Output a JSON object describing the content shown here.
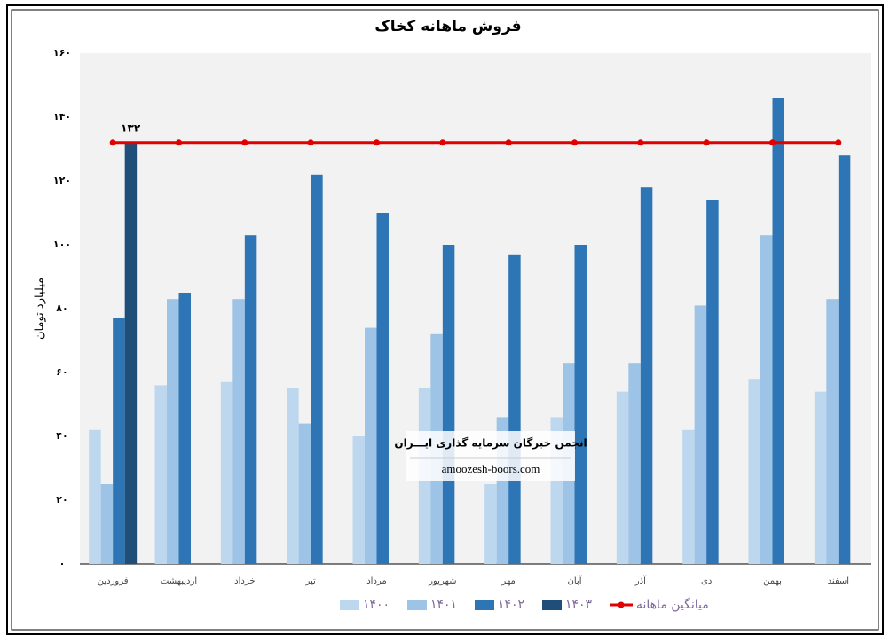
{
  "chart_data": {
    "type": "bar",
    "title": "فروش ماهانه کخاک",
    "y_label": "میلیارد تومان",
    "categories": [
      "فروردین",
      "اردیبهشت",
      "خرداد",
      "تیر",
      "مرداد",
      "شهریور",
      "مهر",
      "آبان",
      "آذر",
      "دی",
      "بهمن",
      "اسفند"
    ],
    "series": [
      {
        "name": "۱۴۰۰",
        "color": "#bdd7ee",
        "values": [
          42,
          56,
          57,
          55,
          40,
          55,
          25,
          46,
          54,
          42,
          58,
          54
        ]
      },
      {
        "name": "۱۴۰۱",
        "color": "#9dc3e6",
        "values": [
          25,
          83,
          83,
          44,
          74,
          72,
          46,
          63,
          63,
          81,
          103,
          83
        ]
      },
      {
        "name": "۱۴۰۲",
        "color": "#2e75b6",
        "values": [
          77,
          85,
          103,
          122,
          110,
          100,
          97,
          100,
          118,
          114,
          146,
          128
        ]
      },
      {
        "name": "۱۴۰۳",
        "color": "#1f4e79",
        "values": [
          132,
          null,
          null,
          null,
          null,
          null,
          null,
          null,
          null,
          null,
          null,
          null
        ]
      },
      {
        "name": "میانگین ماهانه",
        "type": "line",
        "color": "#e00000",
        "values": [
          132,
          132,
          132,
          132,
          132,
          132,
          132,
          132,
          132,
          132,
          132,
          132
        ],
        "value_labels": [
          "۱۳۲",
          null,
          null,
          null,
          null,
          null,
          null,
          null,
          null,
          null,
          null,
          null
        ]
      }
    ],
    "ylim": [
      0,
      160
    ],
    "yticks": [
      {
        "value": 0,
        "label": "۰"
      },
      {
        "value": 20,
        "label": "۲۰"
      },
      {
        "value": 40,
        "label": "۴۰"
      },
      {
        "value": 60,
        "label": "۶۰"
      },
      {
        "value": 80,
        "label": "۸۰"
      },
      {
        "value": 100,
        "label": "۱۰۰"
      },
      {
        "value": 120,
        "label": "۱۲۰"
      },
      {
        "value": 140,
        "label": "۱۴۰"
      },
      {
        "value": 160,
        "label": "۱۶۰"
      }
    ],
    "grid": false
  },
  "watermark": {
    "line1": "انجمن خبرگان سرمایه گذاری ایـــران",
    "line2": "amoozesh-boors.com"
  }
}
